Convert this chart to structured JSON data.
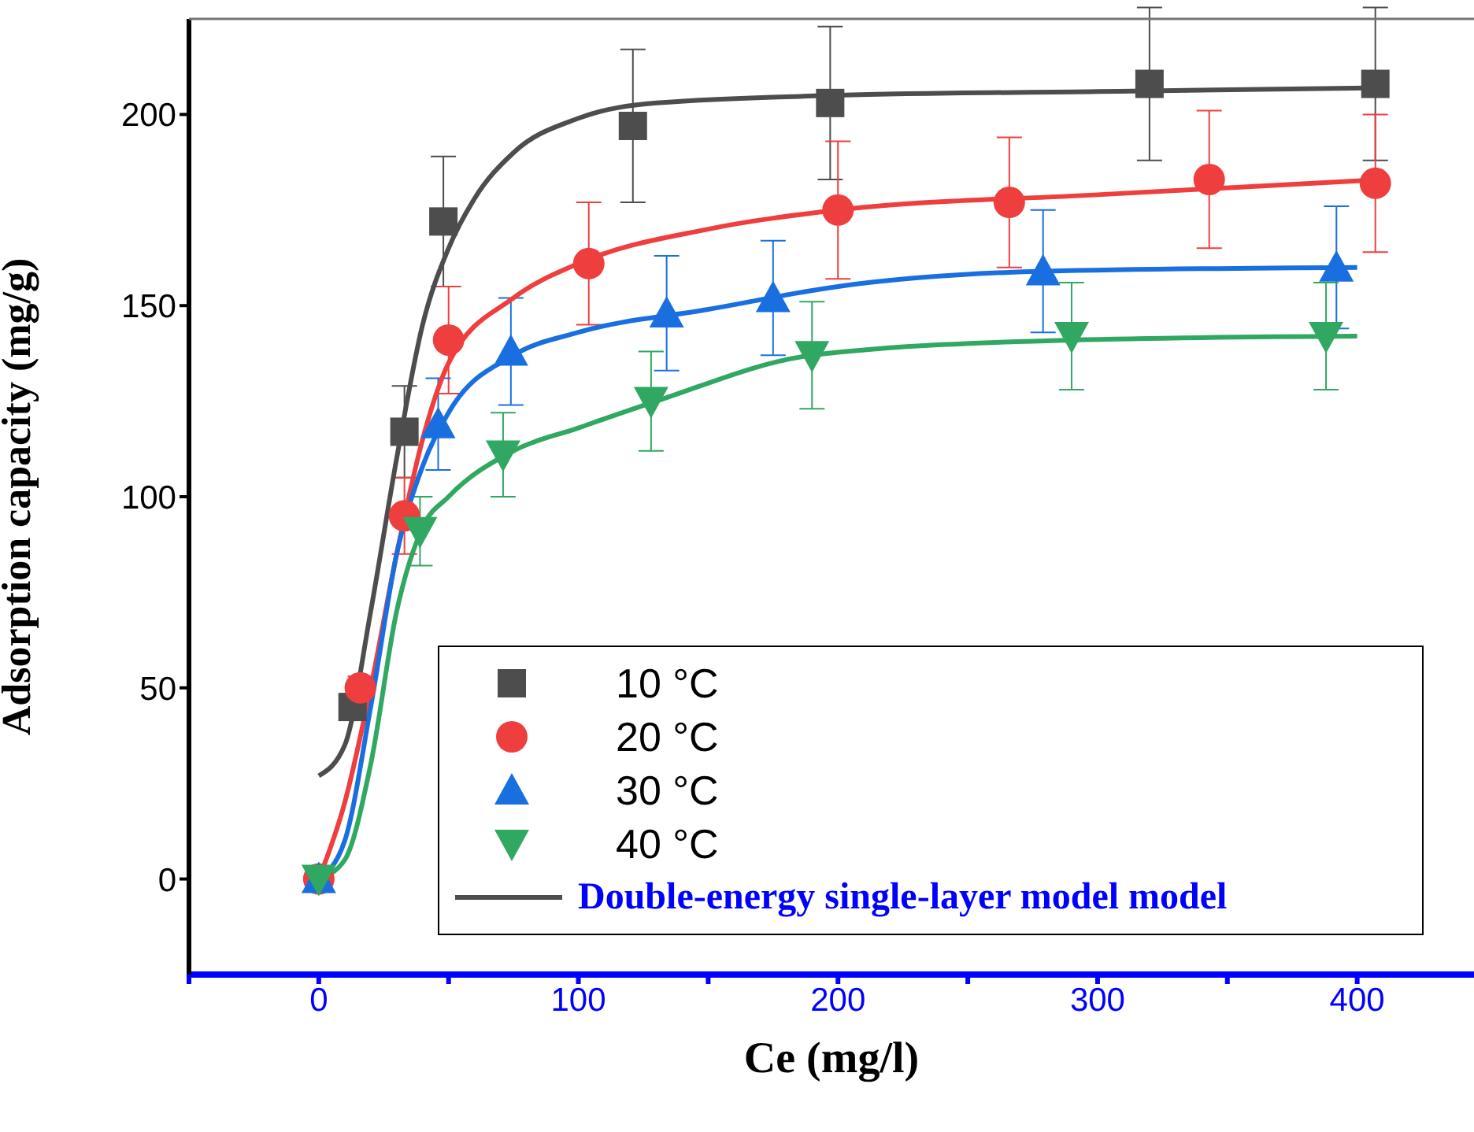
{
  "chart_data": {
    "type": "scatter",
    "xlabel": "Ce (mg/l)",
    "ylabel": "Adsorption capacity (mg/g)",
    "xlim": [
      -50,
      445
    ],
    "xticks": [
      {
        "value": -50,
        "label": null
      },
      0,
      {
        "value": 50,
        "label": null
      },
      100,
      {
        "value": 150,
        "label": null
      },
      200,
      {
        "value": 250,
        "label": null
      },
      300,
      {
        "value": 350,
        "label": null
      },
      400
    ],
    "ylim": [
      -25,
      225
    ],
    "yticks": [
      0,
      50,
      100,
      150,
      200
    ],
    "grid": false,
    "legend": "bottom right",
    "series": [
      {
        "name": "10 °C",
        "marker": "square",
        "color": "#4d4d4d",
        "x": [
          13,
          33,
          48,
          121,
          197,
          320,
          407
        ],
        "values": [
          45,
          117,
          172,
          197,
          203,
          208,
          208
        ],
        "errors": [
          3,
          12,
          17,
          20,
          20,
          20,
          20
        ]
      },
      {
        "name": "20 °C",
        "marker": "circle",
        "color": "#ef3e3e",
        "x": [
          0,
          16,
          33,
          50,
          104,
          200,
          266,
          343,
          407
        ],
        "values": [
          0,
          50,
          95,
          141,
          161,
          175,
          177,
          183,
          182
        ],
        "errors": [
          null,
          3,
          10,
          14,
          16,
          18,
          17,
          18,
          18
        ]
      },
      {
        "name": "30 °C",
        "marker": "triangle",
        "color": "#1a6fe0",
        "x": [
          0,
          46,
          74,
          134,
          175,
          279,
          392
        ],
        "values": [
          0,
          119,
          138,
          148,
          152,
          159,
          160
        ],
        "errors": [
          null,
          12,
          14,
          15,
          15,
          16,
          16
        ]
      },
      {
        "name": "40 °C",
        "marker": "triangle-down",
        "color": "#30a862",
        "x": [
          0,
          39,
          71,
          128,
          190,
          290,
          388
        ],
        "values": [
          0,
          91,
          111,
          125,
          137,
          142,
          142
        ],
        "errors": [
          null,
          9,
          11,
          13,
          14,
          14,
          14
        ]
      },
      {
        "name": "Double-energy single-layer model model",
        "type": "line",
        "color": "#4d4d4d",
        "x": [
          0,
          10,
          20,
          30,
          40,
          50,
          60,
          75,
          100,
          130,
          200,
          300,
          410
        ],
        "values": [
          27,
          35,
          70,
          110,
          145,
          165,
          178,
          190,
          199,
          203,
          205,
          206,
          207
        ]
      },
      {
        "type": "line",
        "color": "#ef3e3e",
        "x": [
          0,
          10,
          20,
          30,
          40,
          50,
          75,
          100,
          150,
          200,
          300,
          410
        ],
        "values": [
          0,
          20,
          50,
          85,
          115,
          135,
          152,
          161,
          170,
          175,
          179,
          183
        ]
      },
      {
        "type": "line",
        "color": "#1a6fe0",
        "x": [
          0,
          10,
          20,
          30,
          40,
          50,
          75,
          100,
          150,
          200,
          280,
          400
        ],
        "values": [
          0,
          10,
          45,
          85,
          108,
          122,
          137,
          143,
          149,
          155,
          159,
          160
        ]
      },
      {
        "type": "line",
        "color": "#30a862",
        "x": [
          0,
          10,
          20,
          30,
          40,
          50,
          75,
          100,
          130,
          190,
          290,
          400
        ],
        "values": [
          0,
          5,
          30,
          70,
          92,
          100,
          112,
          118,
          125,
          137,
          141,
          142
        ]
      }
    ]
  }
}
